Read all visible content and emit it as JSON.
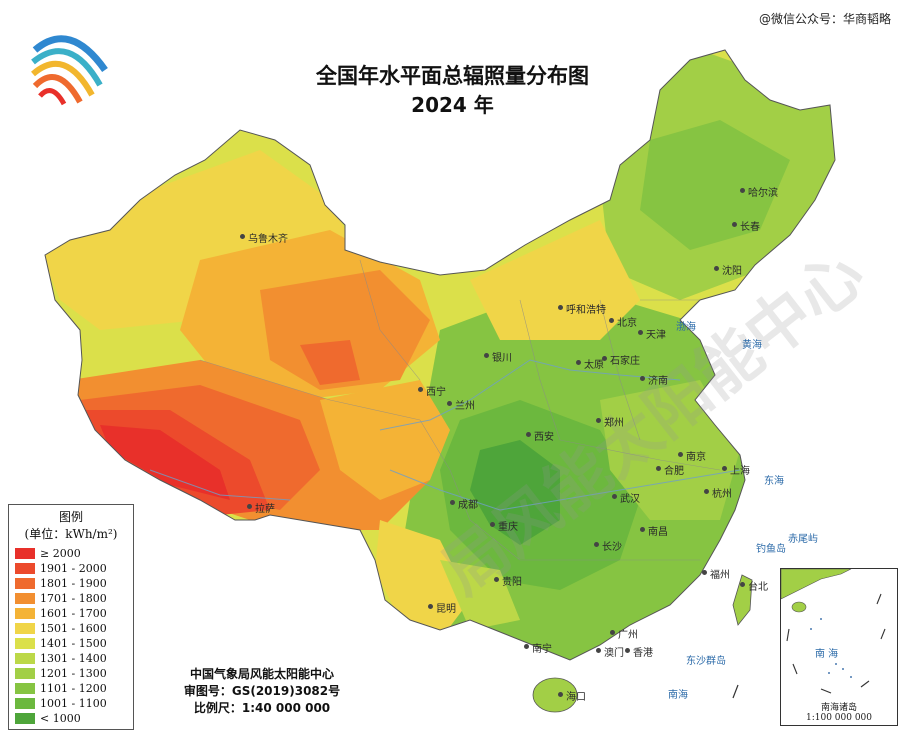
{
  "title": "全国年水平面总辐照量分布图",
  "subtitle": "2024 年",
  "credit_top_right": "@微信公众号：华商韬略",
  "legend": {
    "title": "图例",
    "unit": "(单位：kWh/m²)",
    "items": [
      {
        "label": "≥ 2000",
        "color": "#e8302a"
      },
      {
        "label": "1901 - 2000",
        "color": "#ec4a2c"
      },
      {
        "label": "1801 - 1900",
        "color": "#ef6a2e"
      },
      {
        "label": "1701 - 1800",
        "color": "#f28f30"
      },
      {
        "label": "1601 - 1700",
        "color": "#f4b336"
      },
      {
        "label": "1501 - 1600",
        "color": "#f0d548"
      },
      {
        "label": "1401 - 1500",
        "color": "#dbe04a"
      },
      {
        "label": "1301 - 1400",
        "color": "#bcd848"
      },
      {
        "label": "1201 - 1300",
        "color": "#a2cf46"
      },
      {
        "label": "1101 - 1200",
        "color": "#86c442"
      },
      {
        "label": "1001 - 1100",
        "color": "#6cb83e"
      },
      {
        "label": "< 1000",
        "color": "#4ea53a"
      }
    ]
  },
  "publisher": "中国气象局风能太阳能中心",
  "review_no": "审图号：GS(2019)3082号",
  "scale": "比例尺：1:40 000 000",
  "cities": [
    "乌鲁木齐",
    "哈尔滨",
    "长春",
    "沈阳",
    "呼和浩特",
    "北京",
    "天津",
    "银川",
    "太原",
    "石家庄",
    "济南",
    "西宁",
    "兰州",
    "西安",
    "郑州",
    "南京",
    "合肥",
    "上海",
    "杭州",
    "拉萨",
    "成都",
    "重庆",
    "武汉",
    "南昌",
    "长沙",
    "贵阳",
    "昆明",
    "福州",
    "台北",
    "南宁",
    "广州",
    "澳门",
    "香港",
    "海口"
  ],
  "seas": [
    "渤海",
    "黄海",
    "东海",
    "南海",
    "钓鱼岛",
    "赤尾屿",
    "东沙群岛"
  ],
  "inset": {
    "sea": "南 海",
    "label": "南海诸岛",
    "scale": "1:100 000 000"
  },
  "watermark": "局风能太阳能中心"
}
